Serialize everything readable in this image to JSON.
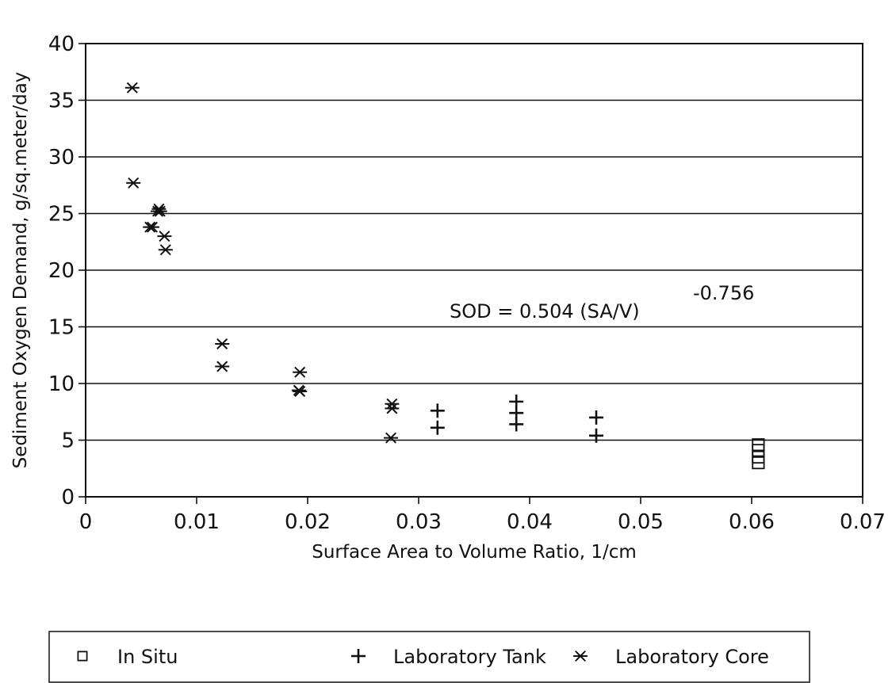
{
  "chart_data": {
    "type": "scatter",
    "title": "",
    "xlabel": "Surface Area to Volume Ratio,  1/cm",
    "ylabel": "Sediment Oxygen Demand,  g/sq.meter/day",
    "xlim": [
      0,
      0.07
    ],
    "ylim": [
      0,
      40
    ],
    "x_ticks": [
      "0",
      "0.01",
      "0.02",
      "0.03",
      "0.04",
      "0.05",
      "0.06",
      "0.07"
    ],
    "x_tick_values": [
      0,
      0.01,
      0.02,
      0.03,
      0.04,
      0.05,
      0.06,
      0.07
    ],
    "y_ticks": [
      "0",
      "5",
      "10",
      "15",
      "20",
      "25",
      "30",
      "35",
      "40"
    ],
    "y_tick_values": [
      0,
      5,
      10,
      15,
      20,
      25,
      30,
      35,
      40
    ],
    "grid": "horizontal",
    "legend_position": "bottom",
    "annotation": {
      "text": "SOD = 0.504 (SA/V)",
      "exponent": "-0.756"
    },
    "series": [
      {
        "name": "In Situ",
        "marker": "square",
        "x": [
          0.0606,
          0.0606,
          0.0606,
          0.0606
        ],
        "y": [
          4.6,
          4.1,
          3.5,
          3.0
        ]
      },
      {
        "name": "Laboratory Tank",
        "marker": "plus",
        "x": [
          0.0317,
          0.0317,
          0.0388,
          0.0388,
          0.0388,
          0.046,
          0.046
        ],
        "y": [
          7.6,
          6.1,
          8.4,
          7.4,
          6.4,
          7.0,
          5.4
        ]
      },
      {
        "name": "Laboratory Core",
        "marker": "asterisk",
        "x": [
          0.0042,
          0.0043,
          0.0058,
          0.006,
          0.0065,
          0.0066,
          0.0067,
          0.0071,
          0.0072,
          0.0123,
          0.0123,
          0.0193,
          0.0192,
          0.0193,
          0.0276,
          0.0276,
          0.0275
        ],
        "y": [
          36.1,
          27.7,
          23.8,
          23.8,
          25.2,
          25.4,
          25.2,
          23.0,
          21.8,
          13.5,
          11.5,
          11.0,
          9.4,
          9.3,
          8.2,
          7.8,
          5.2
        ]
      }
    ]
  },
  "legend": {
    "items": [
      {
        "label": "In Situ",
        "marker": "square"
      },
      {
        "label": "Laboratory Tank",
        "marker": "plus"
      },
      {
        "label": "Laboratory Core",
        "marker": "asterisk"
      }
    ]
  },
  "colors": {
    "ink": "#111111",
    "background": "#ffffff"
  }
}
